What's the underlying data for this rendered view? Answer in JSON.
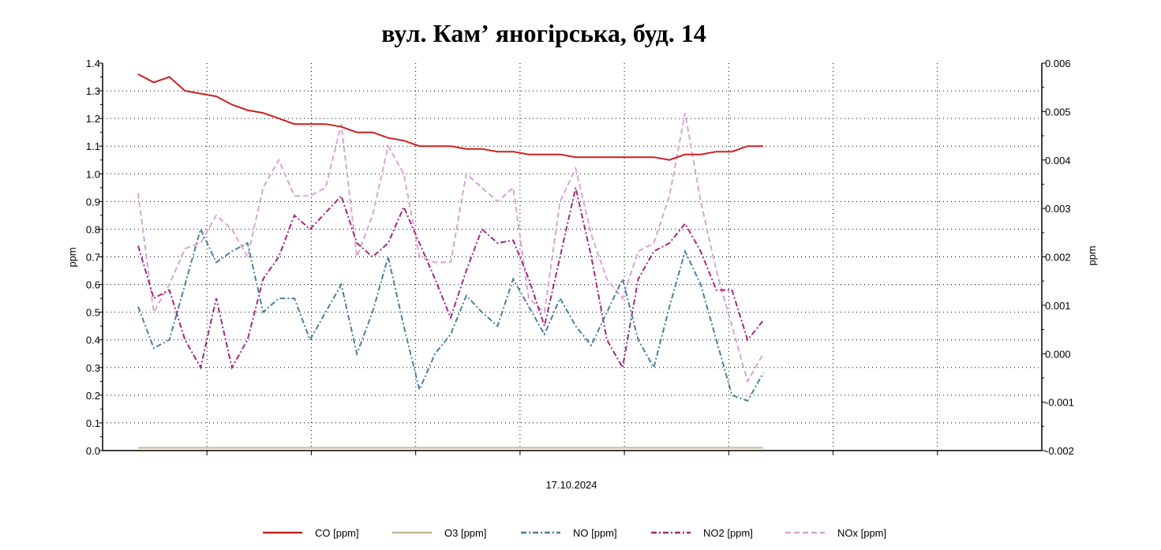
{
  "chart_data": {
    "type": "line",
    "title": "вул. Камʼ яногірська, буд. 14",
    "xlabel": "17.10.2024",
    "ylabel": "ppm",
    "y2label": "ppm",
    "ylim": [
      0,
      1.4
    ],
    "yticks": [
      "0.0",
      "0.1",
      "0.2",
      "0.3",
      "0.4",
      "0.5",
      "0.6",
      "0.7",
      "0.8",
      "0.9",
      "1.0",
      "1.1",
      "1.2",
      "1.3",
      "1.4"
    ],
    "y2lim": [
      -0.002,
      0.006
    ],
    "y2ticks": [
      "-0.002",
      "-0.001",
      "0.000",
      "0.001",
      "0.002",
      "0.003",
      "0.004",
      "0.005",
      "0.006"
    ],
    "grid": true,
    "legend_position": "bottom",
    "series": [
      {
        "name": "CO [ppm]",
        "color": "#cc1f1f",
        "style": "solid",
        "values": [
          1.36,
          1.33,
          1.35,
          1.3,
          1.29,
          1.28,
          1.25,
          1.23,
          1.22,
          1.2,
          1.18,
          1.18,
          1.18,
          1.17,
          1.15,
          1.15,
          1.13,
          1.12,
          1.1,
          1.1,
          1.1,
          1.09,
          1.09,
          1.08,
          1.08,
          1.07,
          1.07,
          1.07,
          1.06,
          1.06,
          1.06,
          1.06,
          1.06,
          1.06,
          1.05,
          1.07,
          1.07,
          1.08,
          1.08,
          1.1,
          1.1
        ]
      },
      {
        "name": "O3 [ppm]",
        "color": "#c8b496",
        "style": "solid",
        "values": [
          0.01,
          0.01,
          0.01,
          0.01,
          0.01,
          0.01,
          0.01,
          0.01,
          0.01,
          0.01,
          0.01,
          0.01,
          0.01,
          0.01,
          0.01,
          0.01,
          0.01,
          0.01,
          0.01,
          0.01,
          0.01,
          0.01,
          0.01,
          0.01,
          0.01,
          0.01,
          0.01,
          0.01,
          0.01,
          0.01,
          0.01,
          0.01,
          0.01,
          0.01,
          0.01,
          0.01,
          0.01,
          0.01,
          0.01,
          0.01,
          0.01
        ]
      },
      {
        "name": "NO [ppm]",
        "color": "#4a7fa0",
        "style": "dashdot",
        "values": [
          0.52,
          0.37,
          0.4,
          0.6,
          0.8,
          0.68,
          0.72,
          0.75,
          0.5,
          0.55,
          0.55,
          0.4,
          0.5,
          0.6,
          0.35,
          0.5,
          0.7,
          0.45,
          0.22,
          0.35,
          0.42,
          0.56,
          0.5,
          0.45,
          0.62,
          0.52,
          0.42,
          0.55,
          0.45,
          0.38,
          0.5,
          0.62,
          0.4,
          0.3,
          0.52,
          0.72,
          0.6,
          0.4,
          0.2,
          0.18,
          0.28
        ]
      },
      {
        "name": "NO2 [ppm]",
        "color": "#a3277f",
        "style": "dashdot",
        "values": [
          0.74,
          0.55,
          0.58,
          0.4,
          0.3,
          0.55,
          0.3,
          0.4,
          0.62,
          0.7,
          0.85,
          0.8,
          0.86,
          0.92,
          0.75,
          0.7,
          0.75,
          0.88,
          0.75,
          0.62,
          0.48,
          0.65,
          0.8,
          0.75,
          0.76,
          0.62,
          0.45,
          0.7,
          0.95,
          0.7,
          0.4,
          0.3,
          0.62,
          0.72,
          0.75,
          0.82,
          0.72,
          0.58,
          0.58,
          0.4,
          0.47
        ]
      },
      {
        "name": "NOx [ppm]",
        "color": "#d8a4d4",
        "style": "dashed",
        "values": [
          0.93,
          0.5,
          0.6,
          0.73,
          0.75,
          0.85,
          0.8,
          0.7,
          0.95,
          1.05,
          0.92,
          0.92,
          0.95,
          1.18,
          0.7,
          0.85,
          1.1,
          1.0,
          0.7,
          0.68,
          0.68,
          1.0,
          0.95,
          0.9,
          0.95,
          0.55,
          0.5,
          0.9,
          1.02,
          0.78,
          0.62,
          0.55,
          0.72,
          0.75,
          0.92,
          1.22,
          0.9,
          0.65,
          0.45,
          0.25,
          0.35
        ]
      }
    ]
  }
}
